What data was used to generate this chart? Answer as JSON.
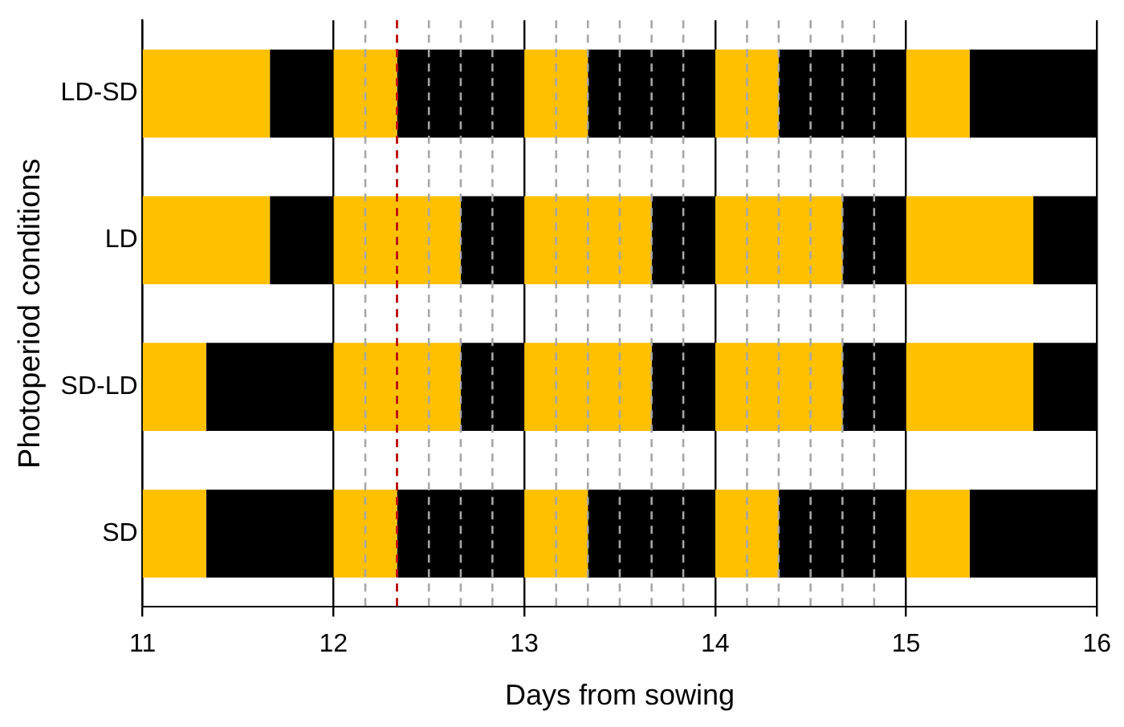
{
  "chart_data": {
    "type": "bar",
    "orientation": "horizontal",
    "xlabel": "Days from sowing",
    "ylabel": "Photoperiod conditions",
    "categories": [
      "LD-SD",
      "LD",
      "SD-LD",
      "SD"
    ],
    "series": [
      {
        "color": "#ffc000",
        "base": [
          11,
          11,
          11,
          11
        ],
        "values": [
          0.667,
          0.667,
          0.333,
          0.333
        ]
      },
      {
        "color": "#000000",
        "base": [
          11.667,
          11.667,
          11.333,
          11.333
        ],
        "values": [
          0.333,
          0.333,
          0.667,
          0.667
        ]
      },
      {
        "color": "#ffc000",
        "base": [
          12,
          12,
          12,
          12
        ],
        "values": [
          0.333,
          0.667,
          0.667,
          0.333
        ]
      },
      {
        "color": "#000000",
        "base": [
          12.333,
          12.667,
          12.667,
          12.333
        ],
        "values": [
          0.667,
          0.333,
          0.333,
          0.667
        ]
      },
      {
        "color": "#ffc000",
        "base": [
          13,
          13,
          13,
          13
        ],
        "values": [
          0.333,
          0.667,
          0.667,
          0.333
        ]
      },
      {
        "color": "#000000",
        "base": [
          13.333,
          13.667,
          13.667,
          13.333
        ],
        "values": [
          0.667,
          0.333,
          0.333,
          0.667
        ]
      },
      {
        "color": "#ffc000",
        "base": [
          14,
          14,
          14,
          14
        ],
        "values": [
          0.333,
          0.667,
          0.667,
          0.333
        ]
      },
      {
        "color": "#000000",
        "base": [
          14.333,
          14.667,
          14.667,
          14.333
        ],
        "values": [
          0.667,
          0.333,
          0.333,
          0.667
        ]
      },
      {
        "color": "#ffc000",
        "base": [
          15,
          15,
          15,
          15
        ],
        "values": [
          0.333,
          0.667,
          0.667,
          0.333
        ]
      },
      {
        "color": "#000000",
        "base": [
          15.333,
          15.667,
          15.667,
          15.333
        ],
        "values": [
          0.667,
          0.333,
          0.333,
          0.667
        ]
      }
    ],
    "xlim": [
      11,
      16
    ],
    "xticks": [
      11,
      12,
      13,
      14,
      15,
      16
    ],
    "grid": "x",
    "legend": false,
    "ref_lines": [
      {
        "axis": "x",
        "value": 12.167,
        "color": "#a6a6a6",
        "line_style": "dashed"
      },
      {
        "axis": "x",
        "value": 12.333,
        "color": "#a6a6a6",
        "line_style": "dashed"
      },
      {
        "axis": "x",
        "value": 12.5,
        "color": "#a6a6a6",
        "line_style": "dashed"
      },
      {
        "axis": "x",
        "value": 12.667,
        "color": "#a6a6a6",
        "line_style": "dashed"
      },
      {
        "axis": "x",
        "value": 12.833,
        "color": "#a6a6a6",
        "line_style": "dashed"
      },
      {
        "axis": "x",
        "value": 13.167,
        "color": "#a6a6a6",
        "line_style": "dashed"
      },
      {
        "axis": "x",
        "value": 13.333,
        "color": "#a6a6a6",
        "line_style": "dashed"
      },
      {
        "axis": "x",
        "value": 13.5,
        "color": "#a6a6a6",
        "line_style": "dashed"
      },
      {
        "axis": "x",
        "value": 13.667,
        "color": "#a6a6a6",
        "line_style": "dashed"
      },
      {
        "axis": "x",
        "value": 13.833,
        "color": "#a6a6a6",
        "line_style": "dashed"
      },
      {
        "axis": "x",
        "value": 14.167,
        "color": "#a6a6a6",
        "line_style": "dashed"
      },
      {
        "axis": "x",
        "value": 14.333,
        "color": "#a6a6a6",
        "line_style": "dashed"
      },
      {
        "axis": "x",
        "value": 14.5,
        "color": "#a6a6a6",
        "line_style": "dashed"
      },
      {
        "axis": "x",
        "value": 14.667,
        "color": "#a6a6a6",
        "line_style": "dashed"
      },
      {
        "axis": "x",
        "value": 14.833,
        "color": "#a6a6a6",
        "line_style": "dashed"
      },
      {
        "axis": "x",
        "value": 12.333,
        "color": "#c00000",
        "line_style": "dashed"
      }
    ]
  }
}
